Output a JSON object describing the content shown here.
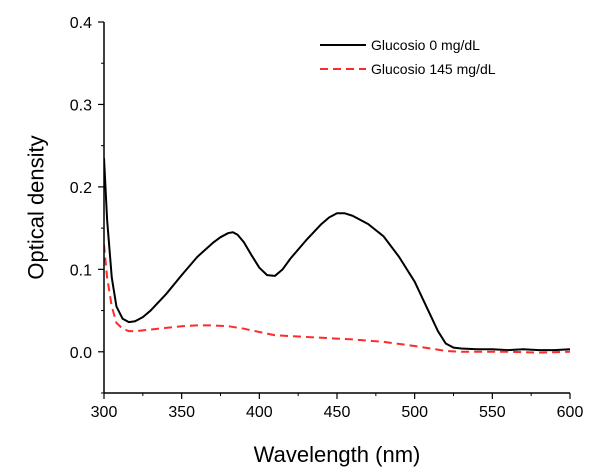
{
  "chart_data": {
    "type": "line",
    "title": "",
    "xlabel": "Wavelength (nm)",
    "ylabel": "Optical density",
    "xlim": [
      300,
      600
    ],
    "ylim": [
      -0.05,
      0.4
    ],
    "xticks": [
      300,
      350,
      400,
      450,
      500,
      550,
      600
    ],
    "yticks": [
      0.0,
      0.1,
      0.2,
      0.3,
      0.4
    ],
    "xtick_labels": [
      "300",
      "350",
      "400",
      "450",
      "500",
      "550",
      "600"
    ],
    "ytick_labels": [
      "0.0",
      "0.1",
      "0.2",
      "0.3",
      "0.4"
    ],
    "grid": false,
    "legend_position": "top-right",
    "series": [
      {
        "name": "Glucosio 0 mg/dL",
        "color": "#000000",
        "dash": "solid",
        "x": [
          300,
          302,
          305,
          308,
          312,
          316,
          320,
          325,
          330,
          340,
          350,
          360,
          370,
          375,
          380,
          383,
          386,
          390,
          395,
          400,
          405,
          410,
          415,
          420,
          430,
          440,
          445,
          450,
          455,
          460,
          470,
          480,
          490,
          500,
          505,
          510,
          515,
          520,
          525,
          530,
          540,
          550,
          560,
          570,
          580,
          590,
          600
        ],
        "y": [
          0.235,
          0.16,
          0.09,
          0.055,
          0.04,
          0.036,
          0.037,
          0.042,
          0.05,
          0.07,
          0.093,
          0.115,
          0.132,
          0.139,
          0.144,
          0.145,
          0.142,
          0.133,
          0.117,
          0.102,
          0.093,
          0.092,
          0.1,
          0.113,
          0.135,
          0.155,
          0.163,
          0.168,
          0.168,
          0.165,
          0.155,
          0.14,
          0.115,
          0.085,
          0.065,
          0.045,
          0.025,
          0.01,
          0.005,
          0.004,
          0.003,
          0.003,
          0.002,
          0.003,
          0.002,
          0.002,
          0.003
        ]
      },
      {
        "name": "Glucosio 145 mg/dL",
        "color": "#ff2a2a",
        "dash": "dashed",
        "x": [
          300,
          302,
          305,
          308,
          312,
          316,
          320,
          330,
          340,
          350,
          360,
          370,
          380,
          390,
          400,
          410,
          420,
          440,
          460,
          480,
          500,
          510,
          520,
          530,
          540,
          560,
          580,
          600
        ],
        "y": [
          0.13,
          0.09,
          0.055,
          0.035,
          0.028,
          0.025,
          0.025,
          0.027,
          0.029,
          0.031,
          0.032,
          0.032,
          0.031,
          0.028,
          0.024,
          0.02,
          0.019,
          0.017,
          0.015,
          0.012,
          0.007,
          0.004,
          0.001,
          0.0,
          0.0,
          0.0,
          -0.001,
          0.0
        ]
      }
    ]
  }
}
